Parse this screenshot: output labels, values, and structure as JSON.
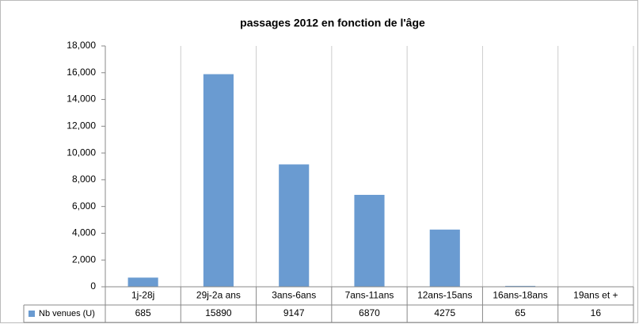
{
  "chart_data": {
    "type": "bar",
    "title": "passages 2012 en fonction de l'âge",
    "categories": [
      "1j-28j",
      "29j-2a ans",
      "3ans-6ans",
      "7ans-11ans",
      "12ans-15ans",
      "16ans-18ans",
      "19ans et +"
    ],
    "series": [
      {
        "name": "Nb venues (U)",
        "color": "#6a9bd1",
        "values": [
          685,
          15890,
          9147,
          6870,
          4275,
          65,
          16
        ]
      }
    ],
    "ylim": [
      0,
      18000
    ],
    "yticks": [
      0,
      {
        "value": 2000,
        "label": "2,000"
      },
      {
        "value": 4000,
        "label": "4,000"
      },
      {
        "value": 6000,
        "label": "6,000"
      },
      {
        "value": 8000,
        "label": "8,000"
      },
      {
        "value": 10000,
        "label": "10,000"
      },
      {
        "value": 12000,
        "label": "12,000"
      },
      {
        "value": 14000,
        "label": "14,000"
      },
      {
        "value": 16000,
        "label": "16,000"
      },
      {
        "value": 18000,
        "label": "18,000"
      }
    ],
    "grid": false,
    "data_table": true
  }
}
